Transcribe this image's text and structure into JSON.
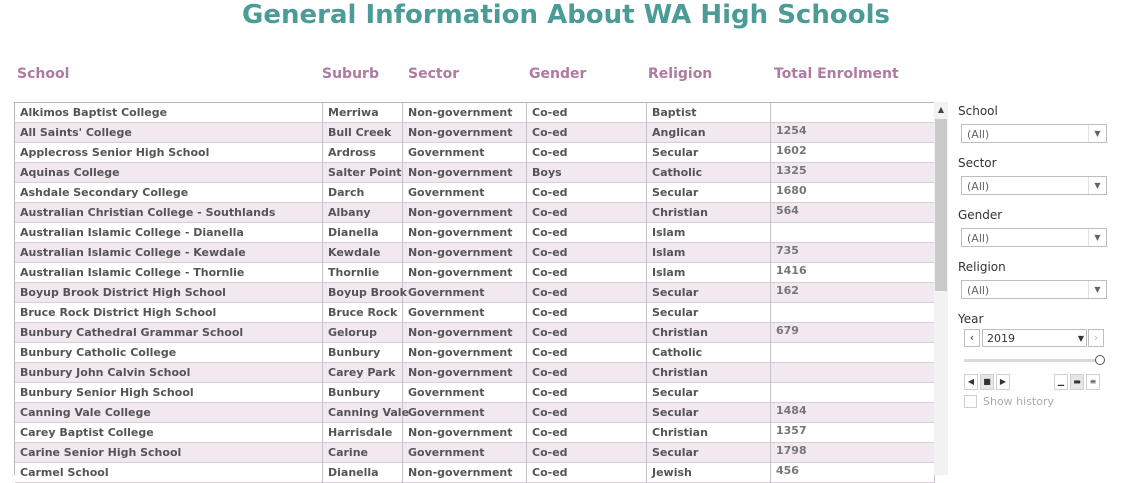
{
  "page": {
    "title": "General Information About WA High Schools"
  },
  "columns": {
    "school": "School",
    "suburb": "Suburb",
    "sector": "Sector",
    "gender": "Gender",
    "religion": "Religion",
    "enrolment": "Total Enrolment"
  },
  "rows": [
    {
      "school": "Alkimos Baptist College",
      "suburb": "Merriwa",
      "sector": "Non-government",
      "gender": "Co-ed",
      "religion": "Baptist",
      "enrolment": ""
    },
    {
      "school": "All Saints' College",
      "suburb": "Bull Creek",
      "sector": "Non-government",
      "gender": "Co-ed",
      "religion": "Anglican",
      "enrolment": "1254"
    },
    {
      "school": "Applecross Senior High School",
      "suburb": "Ardross",
      "sector": "Government",
      "gender": "Co-ed",
      "religion": "Secular",
      "enrolment": "1602"
    },
    {
      "school": "Aquinas College",
      "suburb": "Salter Point",
      "sector": "Non-government",
      "gender": "Boys",
      "religion": "Catholic",
      "enrolment": "1325"
    },
    {
      "school": "Ashdale Secondary College",
      "suburb": "Darch",
      "sector": "Government",
      "gender": "Co-ed",
      "religion": "Secular",
      "enrolment": "1680"
    },
    {
      "school": "Australian Christian College - Southlands",
      "suburb": "Albany",
      "sector": "Non-government",
      "gender": "Co-ed",
      "religion": "Christian",
      "enrolment": "564"
    },
    {
      "school": "Australian Islamic College - Dianella",
      "suburb": "Dianella",
      "sector": "Non-government",
      "gender": "Co-ed",
      "religion": "Islam",
      "enrolment": ""
    },
    {
      "school": "Australian Islamic College - Kewdale",
      "suburb": "Kewdale",
      "sector": "Non-government",
      "gender": "Co-ed",
      "religion": "Islam",
      "enrolment": "735"
    },
    {
      "school": "Australian Islamic College - Thornlie",
      "suburb": "Thornlie",
      "sector": "Non-government",
      "gender": "Co-ed",
      "religion": "Islam",
      "enrolment": "1416"
    },
    {
      "school": "Boyup Brook District High School",
      "suburb": "Boyup Brook",
      "sector": "Government",
      "gender": "Co-ed",
      "religion": "Secular",
      "enrolment": "162"
    },
    {
      "school": "Bruce Rock District High School",
      "suburb": "Bruce Rock",
      "sector": "Government",
      "gender": "Co-ed",
      "religion": "Secular",
      "enrolment": ""
    },
    {
      "school": "Bunbury Cathedral Grammar School",
      "suburb": "Gelorup",
      "sector": "Non-government",
      "gender": "Co-ed",
      "religion": "Christian",
      "enrolment": "679"
    },
    {
      "school": "Bunbury Catholic College",
      "suburb": "Bunbury",
      "sector": "Non-government",
      "gender": "Co-ed",
      "religion": "Catholic",
      "enrolment": ""
    },
    {
      "school": "Bunbury John Calvin School",
      "suburb": "Carey Park",
      "sector": "Non-government",
      "gender": "Co-ed",
      "religion": "Christian",
      "enrolment": ""
    },
    {
      "school": "Bunbury Senior High School",
      "suburb": "Bunbury",
      "sector": "Government",
      "gender": "Co-ed",
      "religion": "Secular",
      "enrolment": ""
    },
    {
      "school": "Canning Vale College",
      "suburb": "Canning Vale",
      "sector": "Government",
      "gender": "Co-ed",
      "religion": "Secular",
      "enrolment": "1484"
    },
    {
      "school": "Carey Baptist College",
      "suburb": "Harrisdale",
      "sector": "Non-government",
      "gender": "Co-ed",
      "religion": "Christian",
      "enrolment": "1357"
    },
    {
      "school": "Carine Senior High School",
      "suburb": "Carine",
      "sector": "Government",
      "gender": "Co-ed",
      "religion": "Secular",
      "enrolment": "1798"
    },
    {
      "school": "Carmel School",
      "suburb": "Dianella",
      "sector": "Non-government",
      "gender": "Co-ed",
      "religion": "Jewish",
      "enrolment": "456"
    }
  ],
  "filters": {
    "school": {
      "label": "School",
      "value": "(All)"
    },
    "sector": {
      "label": "Sector",
      "value": "(All)"
    },
    "gender": {
      "label": "Gender",
      "value": "(All)"
    },
    "religion": {
      "label": "Religion",
      "value": "(All)"
    },
    "year": {
      "label": "Year",
      "value": "2019",
      "slider_fraction": 1.0
    }
  },
  "history": {
    "label": "Show history",
    "checked": false
  },
  "icons": {
    "scroll_up": "triangle-up-icon",
    "dropdown": "chevron-down-icon",
    "prev": "chevron-left-icon",
    "next": "chevron-right-icon"
  },
  "colors": {
    "title": "#4b9b96",
    "header": "#b07aa1",
    "row_alt": "#f1e8f0"
  }
}
